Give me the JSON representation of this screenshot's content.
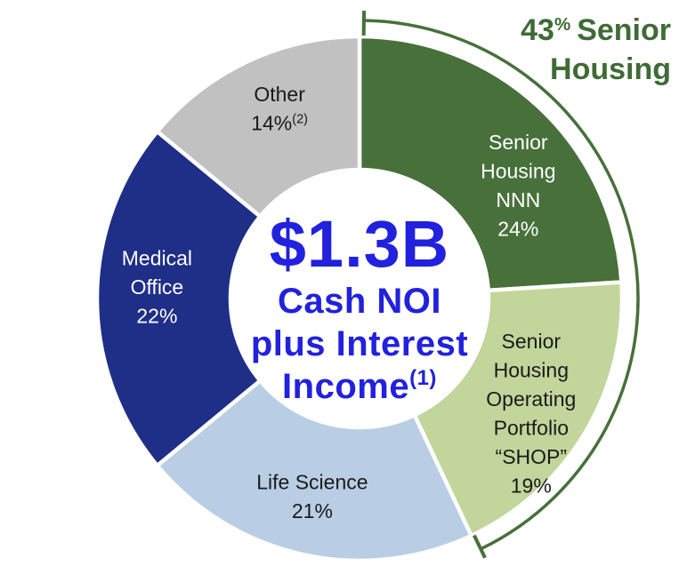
{
  "chart_data": {
    "type": "pie",
    "subtype": "donut",
    "title": "",
    "legend_position": "none",
    "background_color": "#ffffff",
    "center": {
      "value": "$1.3B",
      "label_lines": [
        "Cash NOI",
        "plus Interest",
        "Income"
      ],
      "label_superscript": "(1)",
      "text_color": "#2121de"
    },
    "segments": [
      {
        "name": "Senior Housing NNN",
        "value_pct": 24,
        "label_lines": [
          "Senior",
          "Housing",
          "NNN"
        ],
        "value_label": "24%",
        "color": "#47703a",
        "label_color": "#ffffff"
      },
      {
        "name": "Senior Housing Operating Portfolio \"SHOP\"",
        "value_pct": 19,
        "label_lines": [
          "Senior",
          "Housing",
          "Operating",
          "Portfolio",
          "“SHOP”"
        ],
        "value_label": "19%",
        "color": "#c2d59b",
        "label_color": "#1a1a1a"
      },
      {
        "name": "Life Science",
        "value_pct": 21,
        "label_lines": [
          "Life Science"
        ],
        "value_label": "21%",
        "color": "#b9cde4",
        "label_color": "#1a1a1a"
      },
      {
        "name": "Medical Office",
        "value_pct": 22,
        "label_lines": [
          "Medical",
          "Office"
        ],
        "value_label": "22%",
        "color": "#1f2e87",
        "label_color": "#ffffff"
      },
      {
        "name": "Other",
        "value_pct": 14,
        "label_lines": [
          "Other"
        ],
        "value_label": "14%",
        "value_superscript": "(2)",
        "color": "#c1c1c1",
        "label_color": "#1a1a1a"
      }
    ],
    "annotation": {
      "text": "43% Senior Housing",
      "value": "43",
      "superscript": "%",
      "line1_rest": "Senior",
      "line2": "Housing",
      "covered_pct_total": 43,
      "covers_segments": [
        "Senior Housing NNN",
        "Senior Housing Operating Portfolio \"SHOP\""
      ],
      "text_color": "#3e6b35",
      "bracket_color": "#47703a"
    }
  }
}
